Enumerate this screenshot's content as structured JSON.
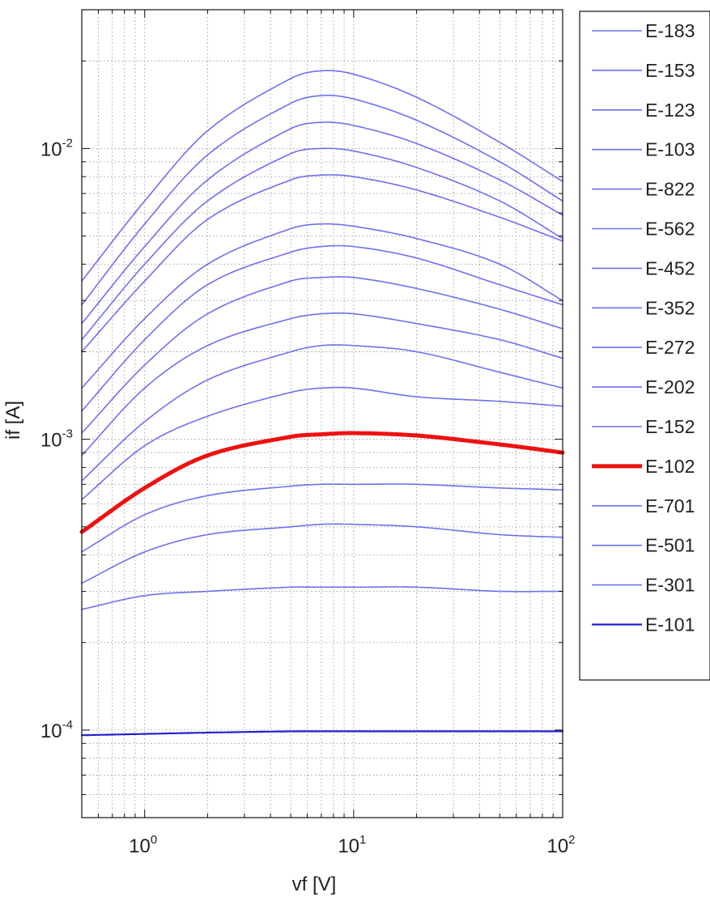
{
  "chart_data": {
    "type": "line",
    "xlabel": "vf [V]",
    "ylabel": "if [A]",
    "xscale": "log",
    "yscale": "log",
    "xlim": [
      0.5,
      100
    ],
    "ylim": [
      5e-05,
      0.03
    ],
    "grid": true,
    "legend_position": "outside-right",
    "x_ticks": [
      {
        "base": "10",
        "exp": "0",
        "value": 1
      },
      {
        "base": "10",
        "exp": "1",
        "value": 10
      },
      {
        "base": "10",
        "exp": "2",
        "value": 100
      }
    ],
    "y_ticks": [
      {
        "base": "10",
        "exp": "-4",
        "value": 0.0001
      },
      {
        "base": "10",
        "exp": "-3",
        "value": 0.001
      },
      {
        "base": "10",
        "exp": "-2",
        "value": 0.01
      }
    ],
    "x": [
      0.5,
      1,
      2,
      5,
      7,
      10,
      20,
      50,
      100
    ],
    "series": [
      {
        "name": "E-183",
        "color": "#6f6ff0",
        "width": 1.6,
        "values": [
          0.0035,
          0.0066,
          0.0115,
          0.0174,
          0.0185,
          0.018,
          0.015,
          0.0105,
          0.0077
        ]
      },
      {
        "name": "E-153",
        "color": "#6f6ff0",
        "width": 1.6,
        "values": [
          0.0029,
          0.0055,
          0.0095,
          0.0143,
          0.0152,
          0.0148,
          0.0125,
          0.009,
          0.0066
        ]
      },
      {
        "name": "E-123",
        "color": "#6f6ff0",
        "width": 1.6,
        "values": [
          0.0025,
          0.0046,
          0.0078,
          0.0117,
          0.0123,
          0.012,
          0.0104,
          0.0078,
          0.0059
        ]
      },
      {
        "name": "E-103",
        "color": "#6f6ff0",
        "width": 1.6,
        "values": [
          0.0022,
          0.004,
          0.0066,
          0.0096,
          0.01,
          0.0098,
          0.0086,
          0.0066,
          0.0049
        ]
      },
      {
        "name": "E-822",
        "color": "#6f6ff0",
        "width": 1.6,
        "values": [
          0.002,
          0.0035,
          0.0057,
          0.0078,
          0.0081,
          0.008,
          0.0072,
          0.0058,
          0.0048
        ]
      },
      {
        "name": "E-562",
        "color": "#6f6ff0",
        "width": 1.6,
        "values": [
          0.0015,
          0.0026,
          0.004,
          0.0053,
          0.0055,
          0.0054,
          0.0049,
          0.004,
          0.003
        ]
      },
      {
        "name": "E-452",
        "color": "#6f6ff0",
        "width": 1.6,
        "values": [
          0.00125,
          0.0022,
          0.0034,
          0.0044,
          0.0046,
          0.0046,
          0.0042,
          0.0034,
          0.0029
        ]
      },
      {
        "name": "E-352",
        "color": "#6f6ff0",
        "width": 1.6,
        "values": [
          0.00105,
          0.0018,
          0.0027,
          0.0035,
          0.0036,
          0.0036,
          0.0033,
          0.0028,
          0.0024
        ]
      },
      {
        "name": "E-272",
        "color": "#6f6ff0",
        "width": 1.6,
        "values": [
          0.00088,
          0.0015,
          0.0021,
          0.0026,
          0.0027,
          0.0027,
          0.0025,
          0.0022,
          0.0019
        ]
      },
      {
        "name": "E-202",
        "color": "#6f6ff0",
        "width": 1.6,
        "values": [
          0.00072,
          0.00115,
          0.0016,
          0.002,
          0.0021,
          0.0021,
          0.002,
          0.0017,
          0.0015
        ]
      },
      {
        "name": "E-152",
        "color": "#6f6ff0",
        "width": 1.6,
        "values": [
          0.00062,
          0.00095,
          0.0012,
          0.00145,
          0.0015,
          0.0015,
          0.0014,
          0.00135,
          0.0013
        ]
      },
      {
        "name": "E-102",
        "color": "#ee1111",
        "width": 5,
        "values": [
          0.00048,
          0.00068,
          0.00088,
          0.00102,
          0.00104,
          0.00105,
          0.00103,
          0.00096,
          0.0009
        ]
      },
      {
        "name": "E-701",
        "color": "#6f6ff0",
        "width": 1.6,
        "values": [
          0.00041,
          0.00055,
          0.00064,
          0.00069,
          0.0007,
          0.0007,
          0.0007,
          0.00068,
          0.00067
        ]
      },
      {
        "name": "E-501",
        "color": "#6f6ff0",
        "width": 1.6,
        "values": [
          0.00032,
          0.00041,
          0.00047,
          0.0005,
          0.00051,
          0.00051,
          0.0005,
          0.00047,
          0.00046
        ]
      },
      {
        "name": "E-301",
        "color": "#6f6ff0",
        "width": 1.6,
        "values": [
          0.00026,
          0.00029,
          0.0003,
          0.00031,
          0.00031,
          0.00031,
          0.00031,
          0.0003,
          0.0003
        ]
      },
      {
        "name": "E-101",
        "color": "#2222cc",
        "width": 2.2,
        "values": [
          9.6e-05,
          9.7e-05,
          9.8e-05,
          9.9e-05,
          9.9e-05,
          9.9e-05,
          9.9e-05,
          9.9e-05,
          9.9e-05
        ]
      }
    ]
  }
}
